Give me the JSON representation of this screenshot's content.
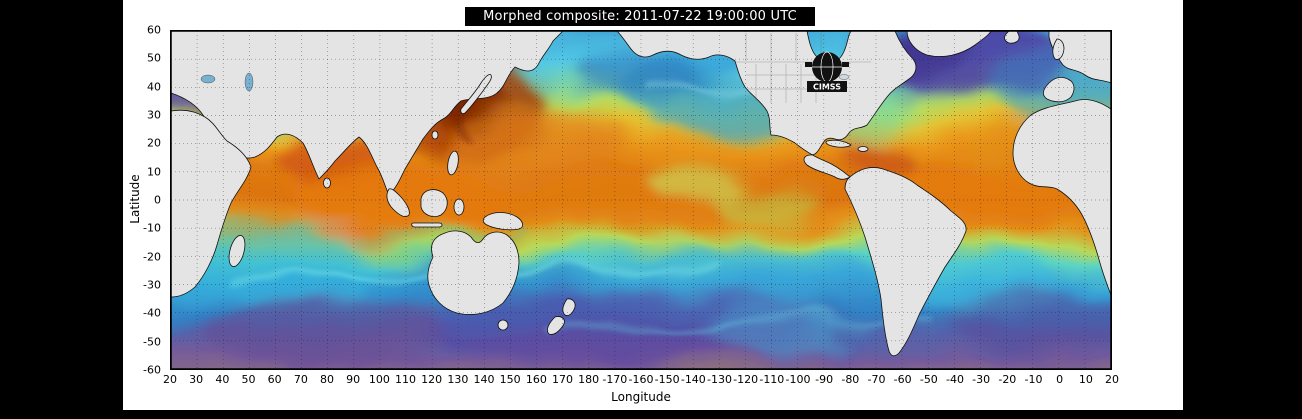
{
  "figure": {
    "title": "Morphed composite: 2011-07-22 19:00:00 UTC"
  },
  "axes": {
    "x_label": "Longitude",
    "y_label": "Latitude",
    "x_ticks": [
      20,
      30,
      40,
      50,
      60,
      70,
      80,
      90,
      100,
      110,
      120,
      130,
      140,
      150,
      160,
      170,
      180,
      -170,
      -160,
      -150,
      -140,
      -130,
      -120,
      -110,
      -100,
      -90,
      -80,
      -70,
      -60,
      -50,
      -40,
      -30,
      -20,
      -10,
      0,
      10,
      20
    ],
    "y_ticks": [
      60,
      50,
      40,
      30,
      20,
      10,
      0,
      -10,
      -20,
      -30,
      -40,
      -50,
      -60
    ]
  },
  "logo": {
    "label": "CIMSS"
  },
  "map": {
    "type": "morphed-water-vapor-composite",
    "colors": {
      "land": "#e4e4e4",
      "coastline": "#111111",
      "grid_dots": "#1a1a1a",
      "equatorial_moist_orange": "#dc7410",
      "storm_core_red": "#7a2004",
      "tropical_cyan": "#52c8e6",
      "midlatitude_blue": "#3a68b0",
      "high_lat_purple": "#50309a",
      "southern_dry_brown": "#ac8450"
    }
  }
}
